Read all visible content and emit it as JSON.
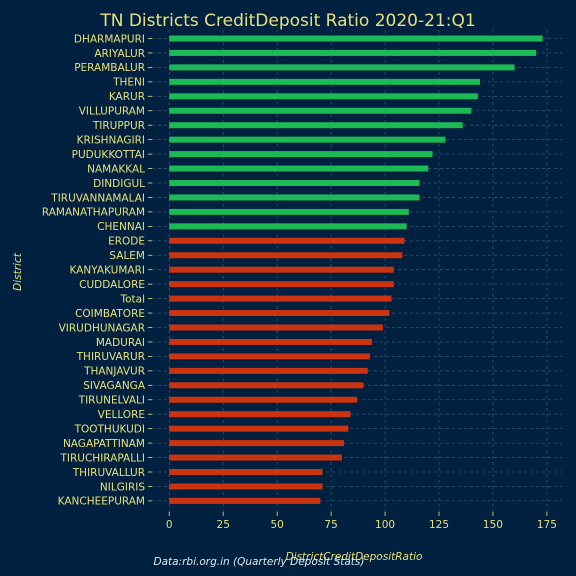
{
  "chart_data": {
    "type": "bar",
    "orientation": "horizontal",
    "title": "TN Districts CreditDeposit Ratio 2020-21:Q1",
    "xlabel": "DistrictCreditDepositRatio",
    "ylabel": "District",
    "caption": "Data:rbi.org.in (Quarterly Deposit Stats)",
    "xlim": [
      -8,
      182
    ],
    "xticks": [
      0,
      25,
      50,
      75,
      100,
      125,
      150,
      175
    ],
    "grid": true,
    "colors": {
      "above": "#1db954",
      "below": "#cc3311",
      "background": "#00203f"
    },
    "threshold": 109,
    "categories": [
      "DHARMAPURI",
      "ARIYALUR",
      "PERAMBALUR",
      "THENI",
      "KARUR",
      "VILLUPURAM",
      "TIRUPPUR",
      "KRISHNAGIRI",
      "PUDUKKOTTAI",
      "NAMAKKAL",
      "DINDIGUL",
      "TIRUVANNAMALAI",
      "RAMANATHAPURAM",
      "CHENNAI",
      "ERODE",
      "SALEM",
      "KANYAKUMARI",
      "CUDDALORE",
      "Total",
      "COIMBATORE",
      "VIRUDHUNAGAR",
      "MADURAI",
      "THIRUVARUR",
      "THANJAVUR",
      "SIVAGANGA",
      "TIRUNELVALI",
      "VELLORE",
      "TOOTHUKUDI",
      "NAGAPATTINAM",
      "TIRUCHIRAPALLI",
      "THIRUVALLUR",
      "NILGIRIS",
      "KANCHEEPURAM"
    ],
    "values": [
      173,
      170,
      160,
      144,
      143,
      140,
      136,
      128,
      122,
      120,
      116,
      116,
      111,
      110,
      109,
      108,
      104,
      104,
      103,
      102,
      99,
      94,
      93,
      92,
      90,
      87,
      84,
      83,
      81,
      80,
      71,
      71,
      70
    ]
  }
}
